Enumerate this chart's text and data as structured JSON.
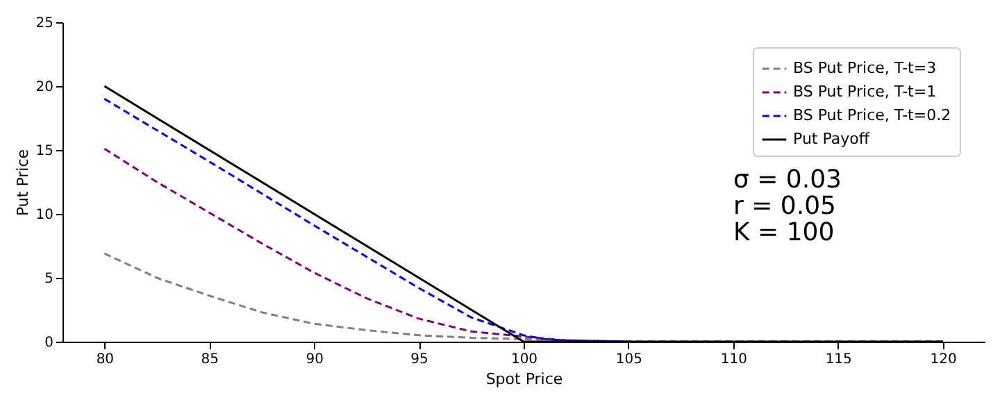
{
  "chart_data": {
    "type": "line",
    "xlabel": "Spot Price",
    "ylabel": "Put Price",
    "xlim": [
      78,
      122
    ],
    "xticks": [
      80,
      85,
      90,
      95,
      100,
      105,
      110,
      115,
      120
    ],
    "ylim": [
      0,
      25
    ],
    "yticks": [
      0,
      5,
      10,
      15,
      20,
      25
    ],
    "grid": false,
    "legend": "top right",
    "marker": "none",
    "annotations": [
      "σ = 0.03",
      "r = 0.05",
      "K = 100"
    ],
    "series": [
      {
        "name": "BS Put Price, T-t=3",
        "color": "#808080",
        "line_style": "dashed",
        "x": [
          80,
          82.5,
          85,
          87.5,
          90,
          92.5,
          95,
          97.5,
          100,
          102.5,
          105,
          110,
          120
        ],
        "values": [
          6.9,
          5.0,
          3.6,
          2.3,
          1.4,
          0.9,
          0.5,
          0.3,
          0.2,
          0.1,
          0,
          0,
          0
        ]
      },
      {
        "name": "BS Put Price, T-t=1",
        "color": "#800080",
        "line_style": "dashed",
        "x": [
          80,
          82.5,
          85,
          87.5,
          90,
          92.5,
          95,
          97.5,
          100,
          102,
          105,
          110,
          120
        ],
        "values": [
          15.1,
          12.5,
          10.1,
          7.7,
          5.4,
          3.4,
          1.8,
          0.8,
          0.4,
          0.1,
          0,
          0,
          0
        ]
      },
      {
        "name": "BS Put Price, T-t=0.2",
        "color": "#0000ff",
        "line_style": "dashed",
        "x": [
          80,
          85,
          90,
          95,
          97.5,
          100,
          101,
          102,
          105
        ],
        "values": [
          19,
          14.1,
          9.1,
          4.2,
          1.9,
          0.5,
          0.2,
          0.1,
          0
        ]
      },
      {
        "name": "Put Payoff",
        "color": "#000000",
        "line_style": "solid",
        "x": [
          80,
          100,
          120
        ],
        "values": [
          20,
          0,
          0
        ]
      }
    ]
  }
}
